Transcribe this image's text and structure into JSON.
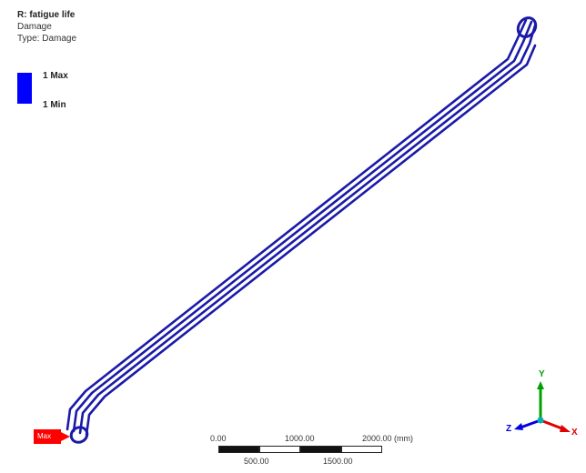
{
  "legend": {
    "title": "R: fatigue life",
    "line1": "Damage",
    "line2": "Type: Damage",
    "max_label": "1 Max",
    "min_label": "1 Min",
    "scale_color": "#0000ff"
  },
  "model": {
    "color": "#1a1aa8",
    "max_marker_label": "Max",
    "max_marker_color": "#ff0000"
  },
  "scale": {
    "top_labels": [
      "0.00",
      "1000.00",
      "2000.00 (mm)"
    ],
    "bottom_labels": [
      "500.00",
      "1500.00"
    ]
  },
  "triad": {
    "x_label": "X",
    "y_label": "Y",
    "z_label": "Z",
    "x_color": "#e00000",
    "y_color": "#00a000",
    "z_color": "#0000e0"
  }
}
